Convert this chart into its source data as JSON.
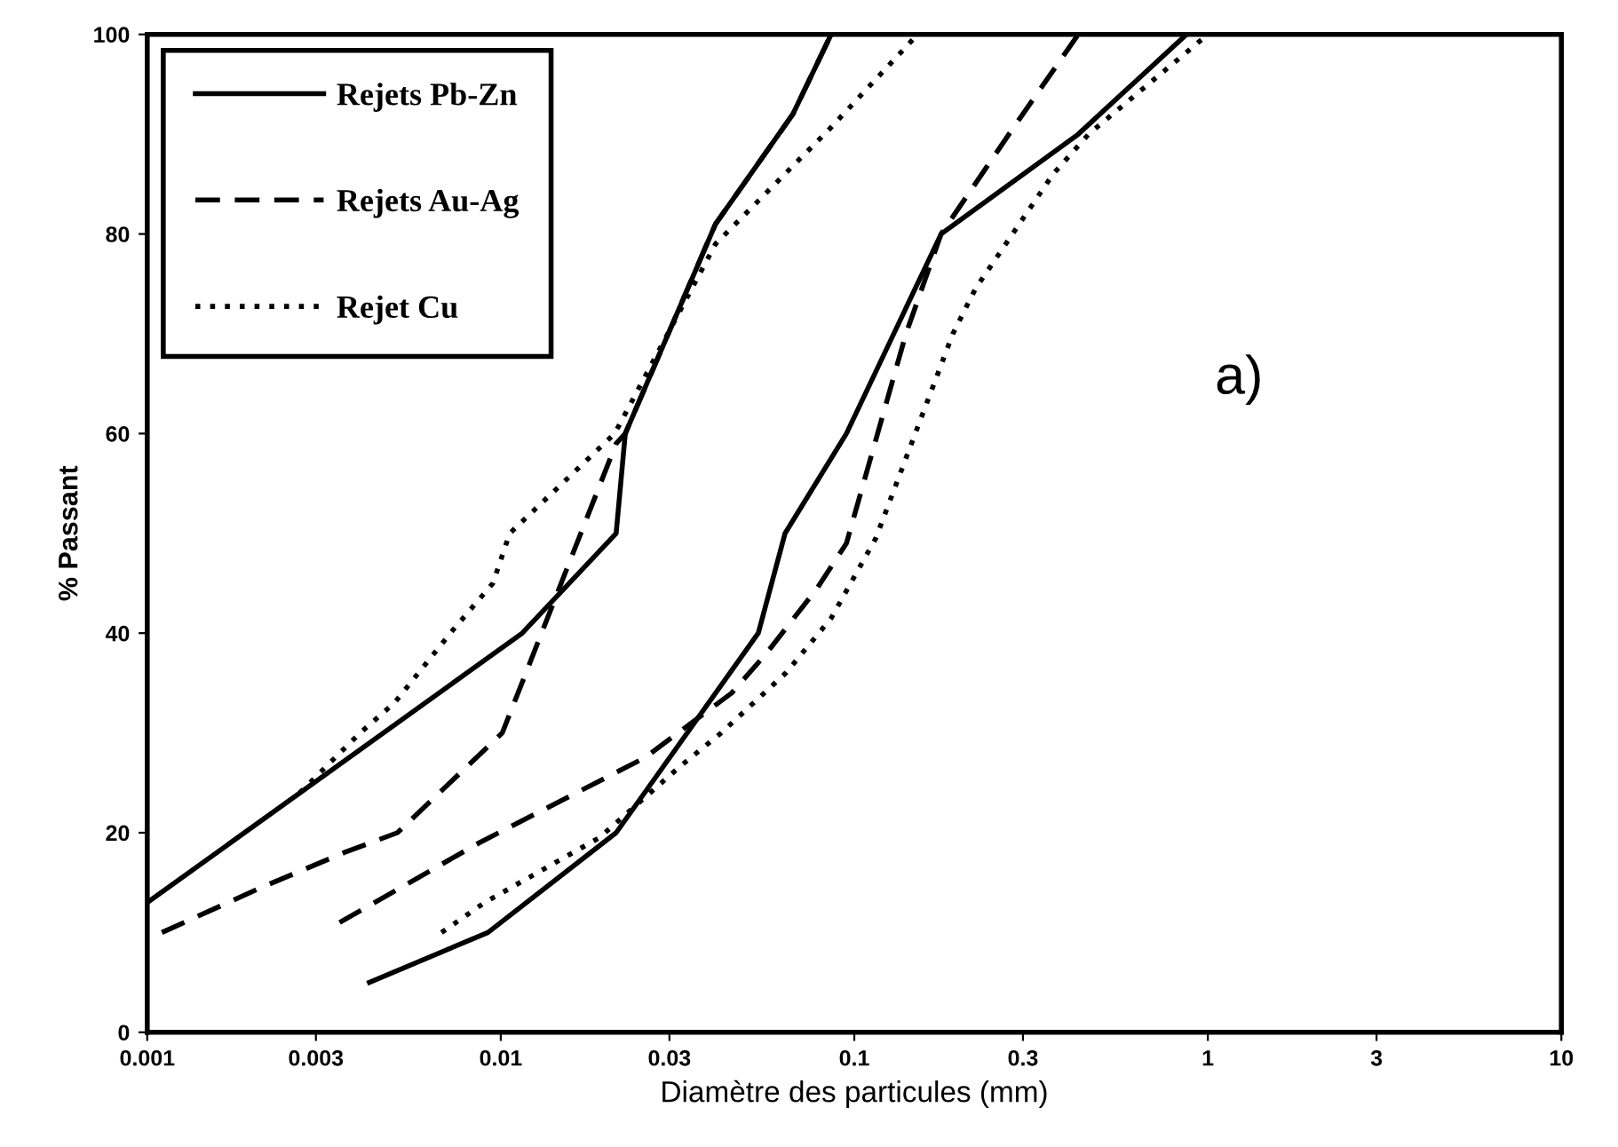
{
  "chart_data": {
    "type": "line",
    "xlabel": "Diamètre des particules (mm)",
    "ylabel": "% Passant",
    "log": "x",
    "xlim": [
      0.001,
      10
    ],
    "xticks": [
      0.001,
      0.003,
      0.01,
      0.03,
      0.1,
      0.3,
      1,
      3,
      10
    ],
    "ylim": [
      0,
      100
    ],
    "yticks": [
      0,
      20,
      40,
      60,
      80,
      100
    ],
    "legend": "top left",
    "annotations": [
      "a)"
    ],
    "series": [
      {
        "name": "Rejets Pb-Zn",
        "color": "#000000",
        "line_style": "solid",
        "x": [
          0.001,
          0.0115,
          0.0212,
          0.0225,
          0.0405,
          0.067,
          0.086
        ],
        "values": [
          13,
          40,
          50,
          60,
          81,
          92,
          100
        ]
      },
      {
        "color": "#000000",
        "line_style": "solid",
        "x": [
          0.00425,
          0.0092,
          0.0212,
          0.0535,
          0.0637,
          0.095,
          0.176,
          0.43,
          0.87
        ],
        "values": [
          5,
          10,
          20,
          40,
          50,
          60,
          80,
          90,
          100
        ]
      },
      {
        "name": "Rejets Au-Ag",
        "color": "#000000",
        "line_style": "dashed",
        "x": [
          0.0011,
          0.0021,
          0.0036,
          0.0051,
          0.0101,
          0.0212,
          0.0225,
          0.0405,
          0.067,
          0.086
        ],
        "values": [
          10,
          14.5,
          18,
          20,
          30,
          59,
          60,
          81,
          92,
          100
        ]
      },
      {
        "color": "#000000",
        "line_style": "dashed",
        "x": [
          0.0035,
          0.0087,
          0.0255,
          0.045,
          0.0565,
          0.0785,
          0.095,
          0.14,
          0.176,
          0.28,
          0.43
        ],
        "values": [
          11,
          19,
          27.5,
          34,
          38,
          44.5,
          49,
          70,
          80,
          90.5,
          100
        ]
      },
      {
        "name": "Rejet Cu",
        "color": "#000000",
        "line_style": "dotted",
        "x": [
          0.0027,
          0.004,
          0.005,
          0.0072,
          0.0095,
          0.0106,
          0.021,
          0.0405,
          0.085,
          0.151
        ],
        "values": [
          24,
          30,
          33,
          40,
          45,
          50,
          60,
          79,
          90.5,
          100
        ]
      },
      {
        "color": "#000000",
        "line_style": "dotted",
        "x": [
          0.0068,
          0.009,
          0.019,
          0.0318,
          0.042,
          0.064,
          0.086,
          0.115,
          0.19,
          0.22,
          0.365,
          0.46,
          1.0
        ],
        "values": [
          10,
          13,
          19.5,
          26.5,
          30,
          36,
          41.5,
          49.5,
          70,
          74.5,
          86,
          90,
          100
        ]
      }
    ]
  }
}
